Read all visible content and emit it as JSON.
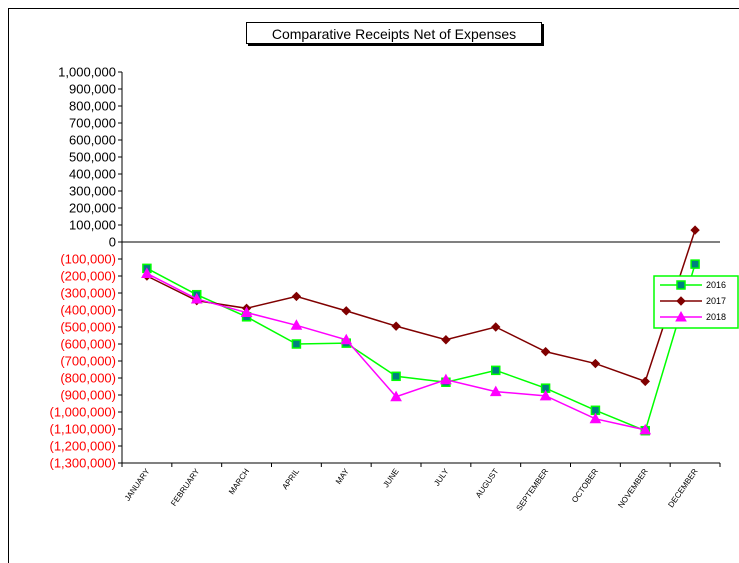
{
  "chart_data": {
    "type": "line",
    "title": "Comparative Receipts Net of Expenses",
    "xlabel": "",
    "ylabel": "",
    "categories": [
      "JANUARY",
      "FEBRUARY",
      "MARCH",
      "APRIL",
      "MAY",
      "JUNE",
      "JULY",
      "AUGUST",
      "SEPTEMBER",
      "OCTOBER",
      "NOVEMBER",
      "DECEMBER"
    ],
    "ylim": [
      -1300000,
      1000000
    ],
    "yticks": [
      {
        "value": 1000000,
        "label": "1,000,000"
      },
      {
        "value": 900000,
        "label": "900,000"
      },
      {
        "value": 800000,
        "label": "800,000"
      },
      {
        "value": 700000,
        "label": "700,000"
      },
      {
        "value": 600000,
        "label": "600,000"
      },
      {
        "value": 500000,
        "label": "500,000"
      },
      {
        "value": 400000,
        "label": "400,000"
      },
      {
        "value": 300000,
        "label": "300,000"
      },
      {
        "value": 200000,
        "label": "200,000"
      },
      {
        "value": 100000,
        "label": "100,000"
      },
      {
        "value": 0,
        "label": "0"
      },
      {
        "value": -100000,
        "label": "(100,000)"
      },
      {
        "value": -200000,
        "label": "(200,000)"
      },
      {
        "value": -300000,
        "label": "(300,000)"
      },
      {
        "value": -400000,
        "label": "(400,000)"
      },
      {
        "value": -500000,
        "label": "(500,000)"
      },
      {
        "value": -600000,
        "label": "(600,000)"
      },
      {
        "value": -700000,
        "label": "(700,000)"
      },
      {
        "value": -800000,
        "label": "(800,000)"
      },
      {
        "value": -900000,
        "label": "(900,000)"
      },
      {
        "value": -1000000,
        "label": "(1,000,000)"
      },
      {
        "value": -1100000,
        "label": "(1,100,000)"
      },
      {
        "value": -1200000,
        "label": "(1,200,000)"
      },
      {
        "value": -1300000,
        "label": "(1,300,000)"
      }
    ],
    "negative_label_color": "#ff0000",
    "positive_label_color": "#000000",
    "grid": false,
    "legend": "right",
    "series": [
      {
        "name": "2016",
        "color": "#00ff00",
        "marker": "square",
        "marker_fill": "#008080",
        "values": [
          -155000,
          -310000,
          -440000,
          -600000,
          -595000,
          -790000,
          -825000,
          -755000,
          -860000,
          -990000,
          -1110000,
          -130000
        ]
      },
      {
        "name": "2017",
        "color": "#800000",
        "marker": "diamond",
        "marker_fill": "#800000",
        "values": [
          -200000,
          -345000,
          -390000,
          -320000,
          -405000,
          -495000,
          -575000,
          -500000,
          -645000,
          -715000,
          -820000,
          70000
        ]
      },
      {
        "name": "2018",
        "color": "#ff00ff",
        "marker": "triangle",
        "marker_fill": "#ff00ff",
        "values": [
          -185000,
          -335000,
          -415000,
          -490000,
          -575000,
          -910000,
          -810000,
          -880000,
          -905000,
          -1040000,
          -1105000,
          null
        ]
      }
    ]
  }
}
